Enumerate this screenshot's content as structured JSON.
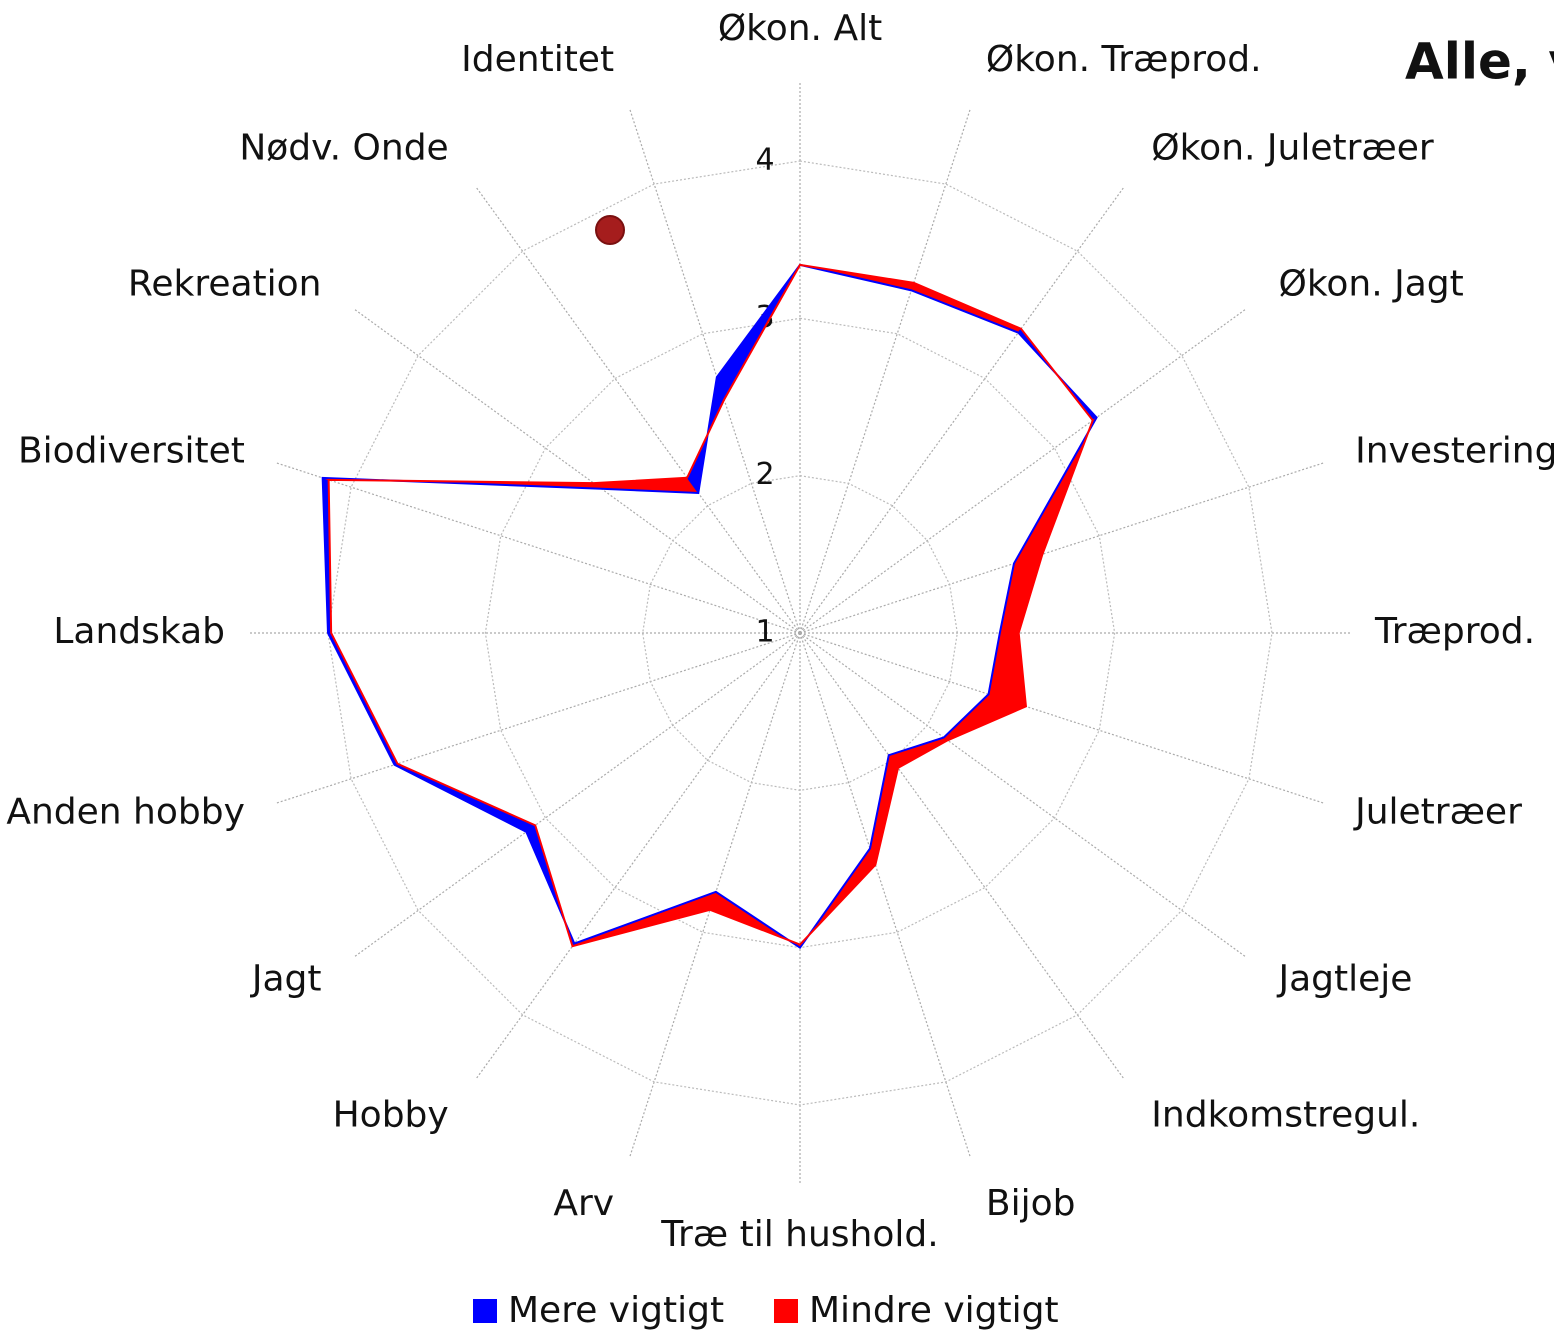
{
  "chart_data": {
    "type": "radar",
    "title": "Alle, v",
    "categories": [
      "Økon. Alt",
      "Økon. Træprod.",
      "Økon. Juletræer",
      "Økon. Jagt",
      "Investering",
      "Træprod.",
      "Juletræer",
      "Jagtleje",
      "Indkomstregul.",
      "Bijob",
      "Træ til hushold.",
      "Arv",
      "Hobby",
      "Jagt",
      "Anden hobby",
      "Landskab",
      "Biodiversitet",
      "Rekreation",
      "Nødv. Onde",
      "Identitet"
    ],
    "series": [
      {
        "name": "Mere vigtigt",
        "color": "#0000ff",
        "values": [
          3.34,
          3.29,
          3.36,
          3.33,
          2.43,
          2.27,
          2.26,
          2.13,
          1.96,
          2.44,
          3.0,
          2.73,
          3.44,
          3.15,
          3.71,
          4.0,
          4.19,
          2.56,
          2.1,
          2.71
        ]
      },
      {
        "name": "Mindre vigtigt",
        "color": "#ff0000",
        "values": [
          3.34,
          3.34,
          3.39,
          3.3,
          2.62,
          2.39,
          2.51,
          2.16,
          2.06,
          2.55,
          2.98,
          2.85,
          3.46,
          3.08,
          3.69,
          3.98,
          4.15,
          2.62,
          2.22,
          2.56
        ]
      }
    ],
    "ylim": [
      1,
      4
    ],
    "yticks": [
      1,
      2,
      3,
      4
    ],
    "grid": true,
    "legend": "bottom"
  }
}
